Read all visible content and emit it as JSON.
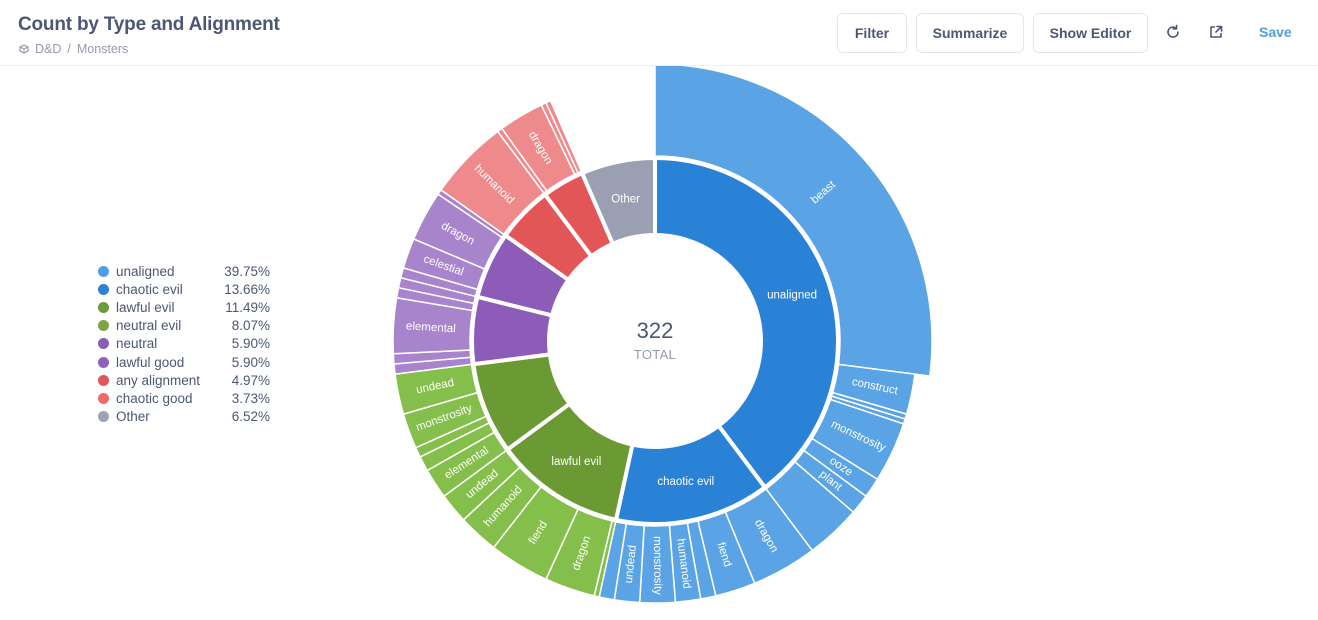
{
  "header": {
    "title": "Count by Type and Alignment",
    "breadcrumb": [
      "D&D",
      "Monsters"
    ],
    "breadcrumb_separator": "/",
    "buttons": {
      "filter": "Filter",
      "summarize": "Summarize",
      "show_editor": "Show Editor"
    },
    "icons": [
      "refresh-icon",
      "open-in-new-icon"
    ],
    "save_label": "Save"
  },
  "legend": [
    {
      "name": "unaligned",
      "pct": "39.75%",
      "color": "#509ee3"
    },
    {
      "name": "chaotic evil",
      "pct": "13.66%",
      "color": "#2e81d6"
    },
    {
      "name": "lawful evil",
      "pct": "11.49%",
      "color": "#6b9a3a"
    },
    {
      "name": "neutral evil",
      "pct": "8.07%",
      "color": "#7da444"
    },
    {
      "name": "neutral",
      "pct": "5.90%",
      "color": "#8a5db8"
    },
    {
      "name": "lawful good",
      "pct": "5.90%",
      "color": "#8f60be"
    },
    {
      "name": "any alignment",
      "pct": "4.97%",
      "color": "#e35658"
    },
    {
      "name": "chaotic good",
      "pct": "3.73%",
      "color": "#ef6a6a"
    },
    {
      "name": "Other",
      "pct": "6.52%",
      "color": "#9da3b3"
    }
  ],
  "center": {
    "total": "322",
    "label": "TOTAL"
  },
  "chart_data": {
    "type": "pie",
    "subtype": "sunburst",
    "total": 322,
    "inner_ring": [
      {
        "name": "unaligned",
        "value": 128,
        "label": "unaligned",
        "color": "#2a82d6"
      },
      {
        "name": "chaotic evil",
        "value": 44,
        "label": "chaotic evil",
        "color": "#2a82d6"
      },
      {
        "name": "lawful evil",
        "value": 37,
        "label": "lawful evil",
        "color": "#6b9a34"
      },
      {
        "name": "neutral evil",
        "value": 26,
        "label": "",
        "color": "#6b9a34"
      },
      {
        "name": "neutral",
        "value": 19,
        "label": "",
        "color": "#8d5cb8"
      },
      {
        "name": "lawful good",
        "value": 19,
        "label": "",
        "color": "#8d5cb8"
      },
      {
        "name": "any alignment",
        "value": 16,
        "label": "",
        "color": "#e35658"
      },
      {
        "name": "chaotic good",
        "value": 12,
        "label": "",
        "color": "#e35658"
      },
      {
        "name": "Other",
        "value": 21,
        "label": "Other",
        "color": "#9aa0b2"
      }
    ],
    "outer_ring": [
      {
        "parent": "unaligned",
        "color": "#5aa3e5",
        "children": [
          {
            "name": "beast",
            "value": 87,
            "label": "beast"
          },
          {
            "name": "construct",
            "value": 8,
            "label": "construct"
          },
          {
            "name": "construct-2",
            "value": 1,
            "label": ""
          },
          {
            "name": "construct-3",
            "value": 1,
            "label": ""
          },
          {
            "name": "monstrosity",
            "value": 12,
            "label": "monstrosity"
          },
          {
            "name": "ooze",
            "value": 4,
            "label": "ooze"
          },
          {
            "name": "plant",
            "value": 4,
            "label": "plant"
          },
          {
            "name": "misc-1",
            "value": 11,
            "label": ""
          }
        ]
      },
      {
        "parent": "chaotic evil",
        "color": "#5aa3e5",
        "children": [
          {
            "name": "dragon",
            "value": 13,
            "label": "dragon"
          },
          {
            "name": "fiend",
            "value": 8,
            "label": "fiend"
          },
          {
            "name": "misc-2",
            "value": 3,
            "label": ""
          },
          {
            "name": "humanoid",
            "value": 5,
            "label": "humanoid"
          },
          {
            "name": "monstrosity",
            "value": 7,
            "label": "monstrosity"
          },
          {
            "name": "undead",
            "value": 5,
            "label": "undead"
          },
          {
            "name": "misc-3",
            "value": 3,
            "label": ""
          }
        ]
      },
      {
        "parent": "lawful evil",
        "color": "#85bf4b",
        "children": [
          {
            "name": "misc-4",
            "value": 1,
            "label": ""
          },
          {
            "name": "dragon",
            "value": 10,
            "label": "dragon"
          },
          {
            "name": "fiend",
            "value": 12,
            "label": "fiend"
          },
          {
            "name": "humanoid",
            "value": 8,
            "label": "humanoid"
          },
          {
            "name": "undead",
            "value": 6,
            "label": "undead"
          }
        ]
      },
      {
        "parent": "neutral evil",
        "color": "#85bf4b",
        "children": [
          {
            "name": "elemental",
            "value": 6,
            "label": "elemental"
          },
          {
            "name": "misc-5",
            "value": 3,
            "label": ""
          },
          {
            "name": "misc-6",
            "value": 2,
            "label": ""
          },
          {
            "name": "monstrosity",
            "value": 7,
            "label": "monstrosity"
          },
          {
            "name": "undead",
            "value": 8,
            "label": "undead"
          }
        ]
      },
      {
        "parent": "neutral",
        "color": "#a884cc",
        "children": [
          {
            "name": "misc-7",
            "value": 2,
            "label": ""
          },
          {
            "name": "misc-8",
            "value": 2,
            "label": ""
          },
          {
            "name": "elemental",
            "value": 11,
            "label": "elemental"
          },
          {
            "name": "misc-9",
            "value": 2,
            "label": ""
          },
          {
            "name": "misc-10",
            "value": 2,
            "label": ""
          }
        ]
      },
      {
        "parent": "lawful good",
        "color": "#a884cc",
        "children": [
          {
            "name": "misc-11",
            "value": 2,
            "label": ""
          },
          {
            "name": "celestial",
            "value": 6,
            "label": "celestial"
          },
          {
            "name": "dragon",
            "value": 10,
            "label": "dragon"
          },
          {
            "name": "misc-12",
            "value": 1,
            "label": ""
          }
        ]
      },
      {
        "parent": "any alignment",
        "color": "#ee8a8c",
        "children": [
          {
            "name": "humanoid",
            "value": 16,
            "label": "humanoid"
          }
        ]
      },
      {
        "parent": "chaotic good",
        "color": "#ee8a8c",
        "children": [
          {
            "name": "misc-13",
            "value": 1,
            "label": ""
          },
          {
            "name": "dragon",
            "value": 9,
            "label": "dragon"
          },
          {
            "name": "misc-14",
            "value": 1,
            "label": ""
          },
          {
            "name": "misc-15",
            "value": 1,
            "label": ""
          }
        ]
      },
      {
        "parent": "Other",
        "color": "#ffffff",
        "children": [
          {
            "name": "blank",
            "value": 21,
            "label": ""
          }
        ]
      }
    ]
  }
}
